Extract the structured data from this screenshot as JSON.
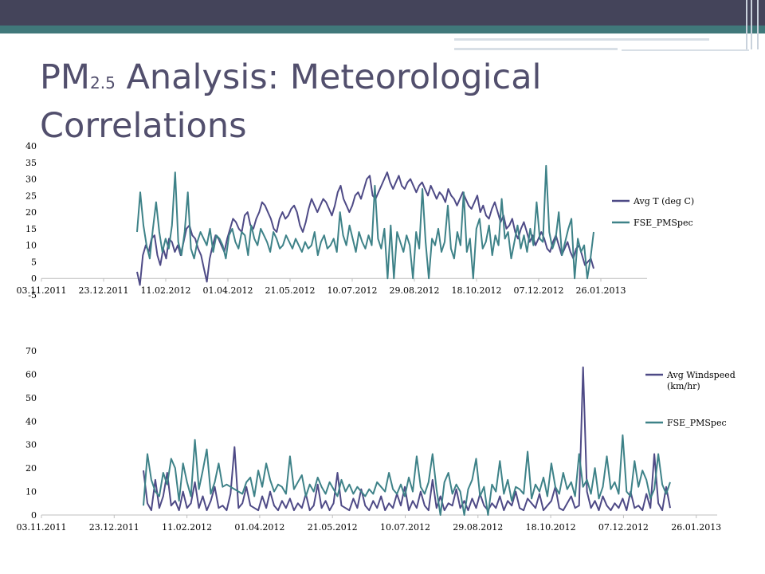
{
  "slide": {
    "title_main": "PM",
    "title_sub": "2.5",
    "title_rest": " Analysis: Meteorological",
    "title_line2": "Correlations",
    "colors": {
      "header": "#44445a",
      "accent": "#40787a",
      "title": "#524f6d"
    }
  },
  "chart_data": [
    {
      "type": "line",
      "ylim": [
        -5,
        40
      ],
      "y_ticks": [
        "40",
        "35",
        "30",
        "25",
        "20",
        "15",
        "10",
        "5",
        "0",
        "-5"
      ],
      "x_ticks": [
        "03.11.2011",
        "23.12.2011",
        "11.02.2012",
        "01.04.2012",
        "21.05.2012",
        "10.07.2012",
        "29.08.2012",
        "18.10.2012",
        "07.12.2012",
        "26.01.2013"
      ],
      "legend_position": "right",
      "series": [
        {
          "name": "Avg T (deg C)",
          "color": "#4e4a86",
          "values": [
            2,
            -2,
            7,
            10,
            8,
            12,
            13,
            7,
            4,
            9,
            6,
            12,
            11,
            8,
            10,
            7,
            11,
            15,
            16,
            13,
            12,
            9,
            7,
            3,
            -1,
            6,
            10,
            13,
            12,
            10,
            8,
            12,
            15,
            18,
            17,
            15,
            14,
            19,
            20,
            16,
            15,
            18,
            20,
            23,
            22,
            20,
            18,
            15,
            14,
            18,
            20,
            18,
            19,
            21,
            22,
            20,
            16,
            14,
            17,
            21,
            24,
            22,
            20,
            22,
            24,
            23,
            21,
            19,
            22,
            26,
            28,
            24,
            22,
            20,
            22,
            25,
            26,
            24,
            27,
            30,
            31,
            25,
            24,
            26,
            28,
            30,
            32,
            29,
            27,
            29,
            31,
            28,
            27,
            29,
            30,
            28,
            26,
            28,
            29,
            27,
            25,
            28,
            26,
            24,
            26,
            25,
            23,
            27,
            25,
            24,
            22,
            24,
            26,
            24,
            22,
            21,
            23,
            25,
            20,
            22,
            19,
            18,
            21,
            23,
            20,
            17,
            19,
            15,
            16,
            18,
            14,
            12,
            15,
            17,
            14,
            11,
            13,
            10,
            12,
            14,
            12,
            9,
            8,
            11,
            13,
            10,
            7,
            9,
            11,
            8,
            6,
            9,
            10,
            7,
            4,
            5,
            6,
            3
          ]
        },
        {
          "name": "FSE_PMSpec",
          "color": "#3e8288",
          "values": [
            14,
            26,
            16,
            10,
            6,
            15,
            23,
            14,
            8,
            12,
            9,
            16,
            32,
            11,
            7,
            14,
            26,
            9,
            6,
            11,
            14,
            12,
            10,
            15,
            8,
            13,
            12,
            10,
            6,
            13,
            15,
            11,
            9,
            14,
            13,
            7,
            16,
            12,
            10,
            15,
            13,
            11,
            8,
            14,
            12,
            9,
            10,
            13,
            11,
            9,
            12,
            10,
            8,
            11,
            9,
            10,
            14,
            7,
            11,
            13,
            9,
            10,
            12,
            8,
            20,
            13,
            10,
            16,
            12,
            8,
            14,
            11,
            9,
            13,
            10,
            28,
            12,
            9,
            15,
            0,
            16,
            0,
            14,
            11,
            8,
            13,
            10,
            0,
            14,
            9,
            27,
            11,
            0,
            12,
            10,
            15,
            8,
            11,
            22,
            9,
            6,
            14,
            10,
            26,
            8,
            12,
            0,
            15,
            18,
            9,
            11,
            16,
            7,
            13,
            10,
            24,
            12,
            14,
            6,
            11,
            16,
            9,
            13,
            8,
            15,
            10,
            23,
            12,
            11,
            34,
            14,
            9,
            12,
            20,
            7,
            11,
            15,
            18,
            0,
            12,
            8,
            10,
            0,
            6,
            14
          ]
        }
      ]
    },
    {
      "type": "line",
      "ylim": [
        0,
        70
      ],
      "y_ticks": [
        "70",
        "60",
        "50",
        "40",
        "30",
        "20",
        "10",
        "0"
      ],
      "x_ticks": [
        "03.11.2011",
        "23.12.2011",
        "11.02.2012",
        "01.04.2012",
        "21.05.2012",
        "10.07.2012",
        "29.08.2012",
        "18.10.2012",
        "07.12.2012",
        "26.01.2013"
      ],
      "legend_position": "right",
      "series": [
        {
          "name": "Avg Windspeed",
          "name_line2": "(km/hr)",
          "color": "#4e4a86",
          "values": [
            19,
            5,
            2,
            15,
            3,
            8,
            18,
            4,
            6,
            2,
            10,
            3,
            5,
            14,
            3,
            8,
            2,
            6,
            12,
            3,
            4,
            2,
            9,
            29,
            3,
            5,
            12,
            4,
            3,
            2,
            8,
            3,
            10,
            4,
            2,
            6,
            3,
            7,
            2,
            5,
            3,
            9,
            2,
            4,
            13,
            3,
            6,
            2,
            5,
            18,
            4,
            3,
            2,
            7,
            3,
            11,
            4,
            2,
            6,
            3,
            8,
            2,
            5,
            3,
            9,
            4,
            12,
            2,
            6,
            3,
            10,
            4,
            2,
            15,
            3,
            8,
            2,
            5,
            4,
            11,
            3,
            6,
            2,
            7,
            3,
            9,
            4,
            2,
            5,
            3,
            8,
            2,
            6,
            4,
            10,
            3,
            2,
            7,
            5,
            3,
            9,
            2,
            4,
            6,
            12,
            3,
            2,
            5,
            8,
            3,
            4,
            63,
            10,
            3,
            6,
            2,
            8,
            4,
            2,
            5,
            3,
            7,
            2,
            10,
            3,
            4,
            2,
            9,
            3,
            26,
            5,
            2,
            12,
            3
          ]
        },
        {
          "name": "FSE_PMSpec",
          "color": "#3e8288",
          "values": [
            4,
            26,
            15,
            10,
            8,
            18,
            13,
            24,
            20,
            6,
            22,
            14,
            8,
            32,
            11,
            19,
            28,
            9,
            14,
            22,
            12,
            13,
            12,
            11,
            10,
            9,
            14,
            16,
            8,
            19,
            12,
            22,
            15,
            10,
            13,
            12,
            9,
            25,
            11,
            14,
            17,
            8,
            13,
            10,
            16,
            12,
            9,
            14,
            11,
            8,
            15,
            10,
            13,
            9,
            12,
            10,
            8,
            11,
            9,
            14,
            12,
            10,
            18,
            11,
            9,
            13,
            8,
            16,
            10,
            25,
            12,
            9,
            14,
            26,
            11,
            0,
            14,
            18,
            9,
            13,
            10,
            0,
            11,
            15,
            24,
            8,
            12,
            0,
            13,
            10,
            23,
            9,
            15,
            6,
            12,
            11,
            9,
            27,
            7,
            13,
            10,
            16,
            8,
            22,
            12,
            9,
            18,
            11,
            14,
            8,
            26,
            12,
            15,
            9,
            20,
            7,
            12,
            25,
            11,
            14,
            9,
            34,
            10,
            8,
            23,
            12,
            19,
            15,
            7,
            11,
            26,
            13,
            9,
            14
          ]
        }
      ]
    }
  ]
}
